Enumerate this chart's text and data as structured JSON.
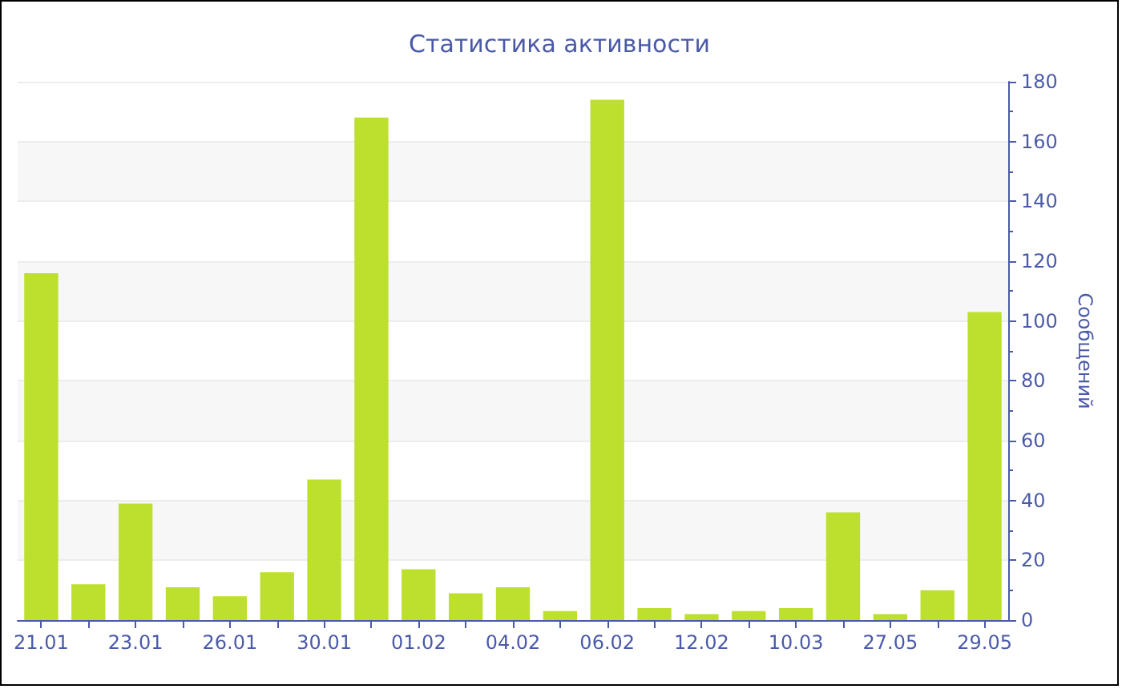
{
  "chart_data": {
    "type": "bar",
    "title": "Статистика активности",
    "ylabel": "Сообщений",
    "categories": [
      "21.01",
      null,
      "23.01",
      null,
      "26.01",
      null,
      "30.01",
      null,
      "01.02",
      null,
      "04.02",
      null,
      "06.02",
      null,
      "12.02",
      null,
      "10.03",
      null,
      "27.05",
      null,
      "29.05"
    ],
    "values": [
      116,
      12,
      39,
      11,
      8,
      16,
      47,
      168,
      17,
      9,
      11,
      3,
      174,
      4,
      2,
      3,
      4,
      36,
      2,
      10,
      103
    ],
    "color": "#bde02f",
    "ylim": [
      0,
      180
    ],
    "yticks": [
      0,
      20,
      40,
      60,
      80,
      100,
      120,
      140,
      160,
      180
    ],
    "grid": "y"
  }
}
